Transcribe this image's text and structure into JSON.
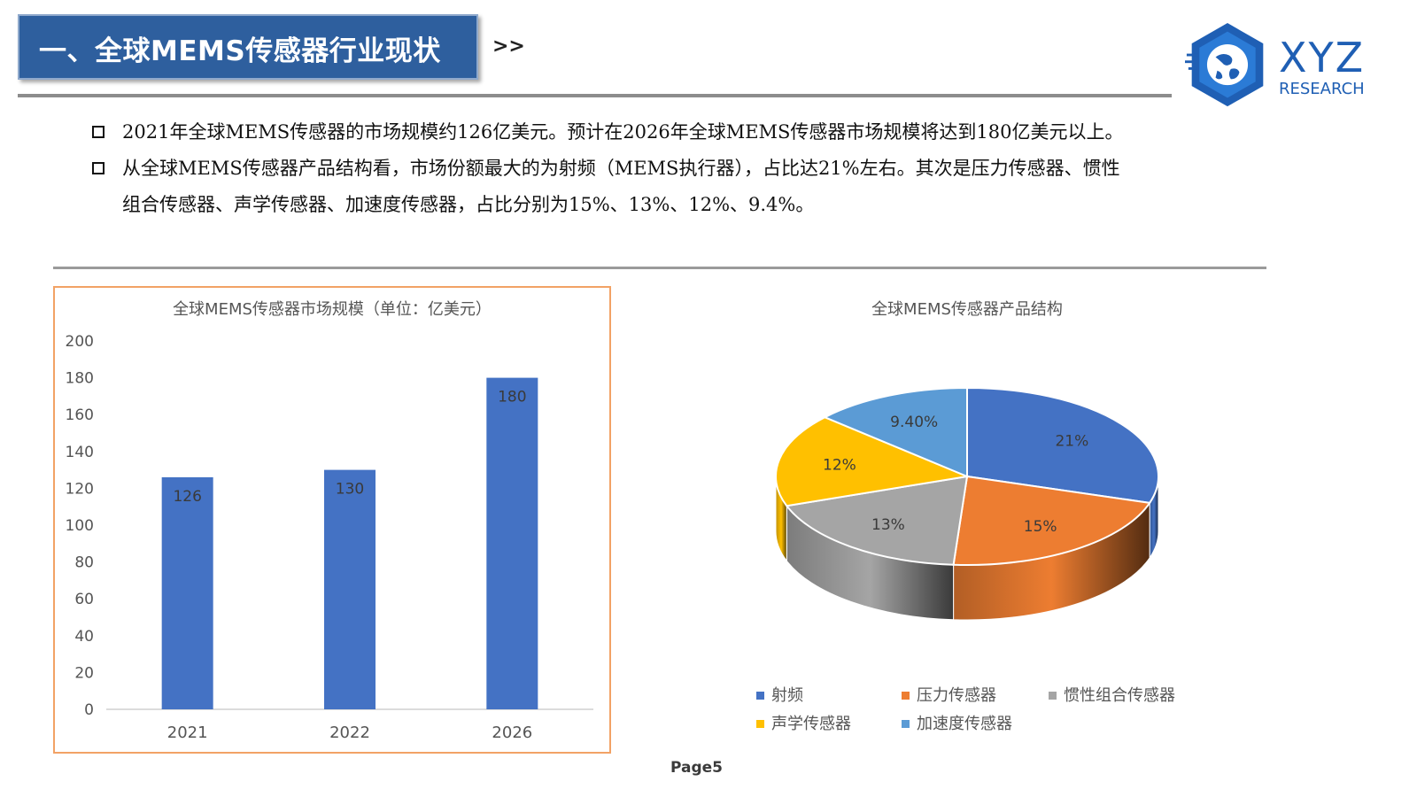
{
  "header": {
    "title": "一、全球MEMS传感器行业现状",
    "arrows": ">>"
  },
  "logo": {
    "brand": "XYZ",
    "sub": "RESEARCH",
    "icon": "globe-hexagon-icon",
    "color": "#1f5fb4"
  },
  "bullets": [
    "2021年全球MEMS传感器的市场规模约126亿美元。预计在2026年全球MEMS传感器市场规模将达到180亿美元以上。",
    "从全球MEMS传感器产品结构看，市场份额最大的为射频（MEMS执行器），占比达21%左右。其次是压力传感器、惯性",
    "组合传感器、声学传感器、加速度传感器，占比分别为15%、13%、12%、9.4%。"
  ],
  "footer": {
    "page": "Page5"
  },
  "chart_data": [
    {
      "type": "bar",
      "title": "全球MEMS传感器市场规模（单位：亿美元）",
      "categories": [
        "2021",
        "2022",
        "2026"
      ],
      "values": [
        126,
        130,
        180
      ],
      "data_labels": [
        "126",
        "130",
        "180"
      ],
      "yticks": [
        "0",
        "20",
        "40",
        "60",
        "80",
        "100",
        "120",
        "140",
        "160",
        "180",
        "200"
      ],
      "ylim": [
        0,
        200
      ],
      "grid": false,
      "color": "#4472c4"
    },
    {
      "type": "pie",
      "title": "全球MEMS传感器产品结构",
      "labels": [
        "射频",
        "压力传感器",
        "惯性组合传感器",
        "声学传感器",
        "加速度传感器"
      ],
      "values": [
        21,
        15,
        13,
        12,
        9.4
      ],
      "data_labels": [
        "21%",
        "15%",
        "13%",
        "12%",
        "9.40%"
      ],
      "colors": [
        "#4472c4",
        "#ed7d31",
        "#a5a5a5",
        "#ffc000",
        "#5b9bd5"
      ],
      "legend_position": "bottom",
      "style": "3d"
    }
  ]
}
